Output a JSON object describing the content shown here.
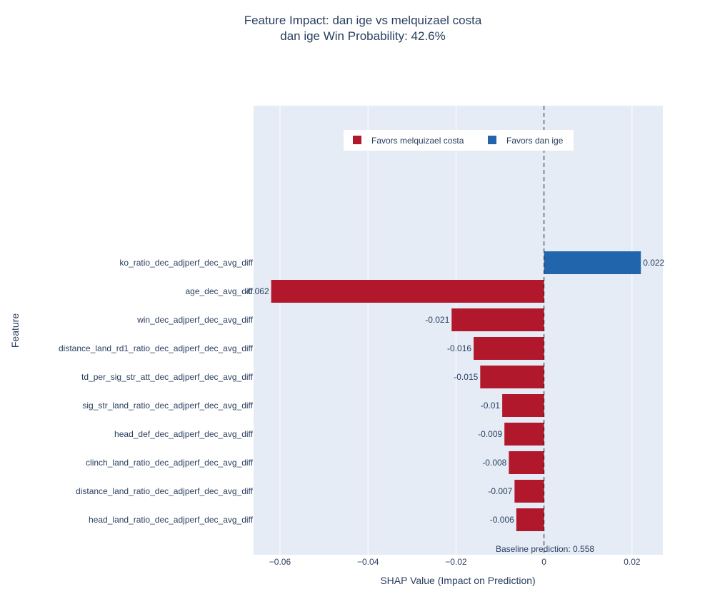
{
  "chart_data": {
    "type": "bar",
    "orientation": "horizontal",
    "title": "Feature Impact: dan ige vs melquizael costa",
    "subtitle": "dan ige Win Probability: 42.6%",
    "xlabel": "SHAP Value (Impact on Prediction)",
    "ylabel": "Feature",
    "xlim": [
      -0.066,
      0.027
    ],
    "xticks": [
      -0.06,
      -0.04,
      -0.02,
      0,
      0.02
    ],
    "xtick_labels": [
      "−0.06",
      "−0.04",
      "−0.02",
      "0",
      "0.02"
    ],
    "grid": true,
    "legend_position": "top-center",
    "legend": [
      {
        "name": "Favors melquizael costa",
        "color": "#b2182b"
      },
      {
        "name": "Favors dan ige",
        "color": "#2166ac"
      }
    ],
    "features": [
      {
        "name": "ko_ratio_dec_adjperf_dec_avg_diff",
        "value": 0.022,
        "label": "0.022"
      },
      {
        "name": "age_dec_avg_diff",
        "value": -0.062,
        "label": "-0.062"
      },
      {
        "name": "win_dec_adjperf_dec_avg_diff",
        "value": -0.021,
        "label": "-0.021"
      },
      {
        "name": "distance_land_rd1_ratio_dec_adjperf_dec_avg_diff",
        "value": -0.016,
        "label": "-0.016"
      },
      {
        "name": "td_per_sig_str_att_dec_adjperf_dec_avg_diff",
        "value": -0.0145,
        "label": "-0.015"
      },
      {
        "name": "sig_str_land_ratio_dec_adjperf_dec_avg_diff",
        "value": -0.0095,
        "label": "-0.01"
      },
      {
        "name": "head_def_dec_adjperf_dec_avg_diff",
        "value": -0.009,
        "label": "-0.009"
      },
      {
        "name": "clinch_land_ratio_dec_adjperf_dec_avg_diff",
        "value": -0.008,
        "label": "-0.008"
      },
      {
        "name": "distance_land_ratio_dec_adjperf_dec_avg_diff",
        "value": -0.0067,
        "label": "-0.007"
      },
      {
        "name": "head_land_ratio_dec_adjperf_dec_avg_diff",
        "value": -0.0063,
        "label": "-0.006"
      }
    ],
    "annotation": "Baseline prediction: 0.558",
    "colors": {
      "positive": "#2166ac",
      "negative": "#b2182b",
      "plot_bg": "#e5ecf6",
      "grid": "#ffffff"
    }
  }
}
